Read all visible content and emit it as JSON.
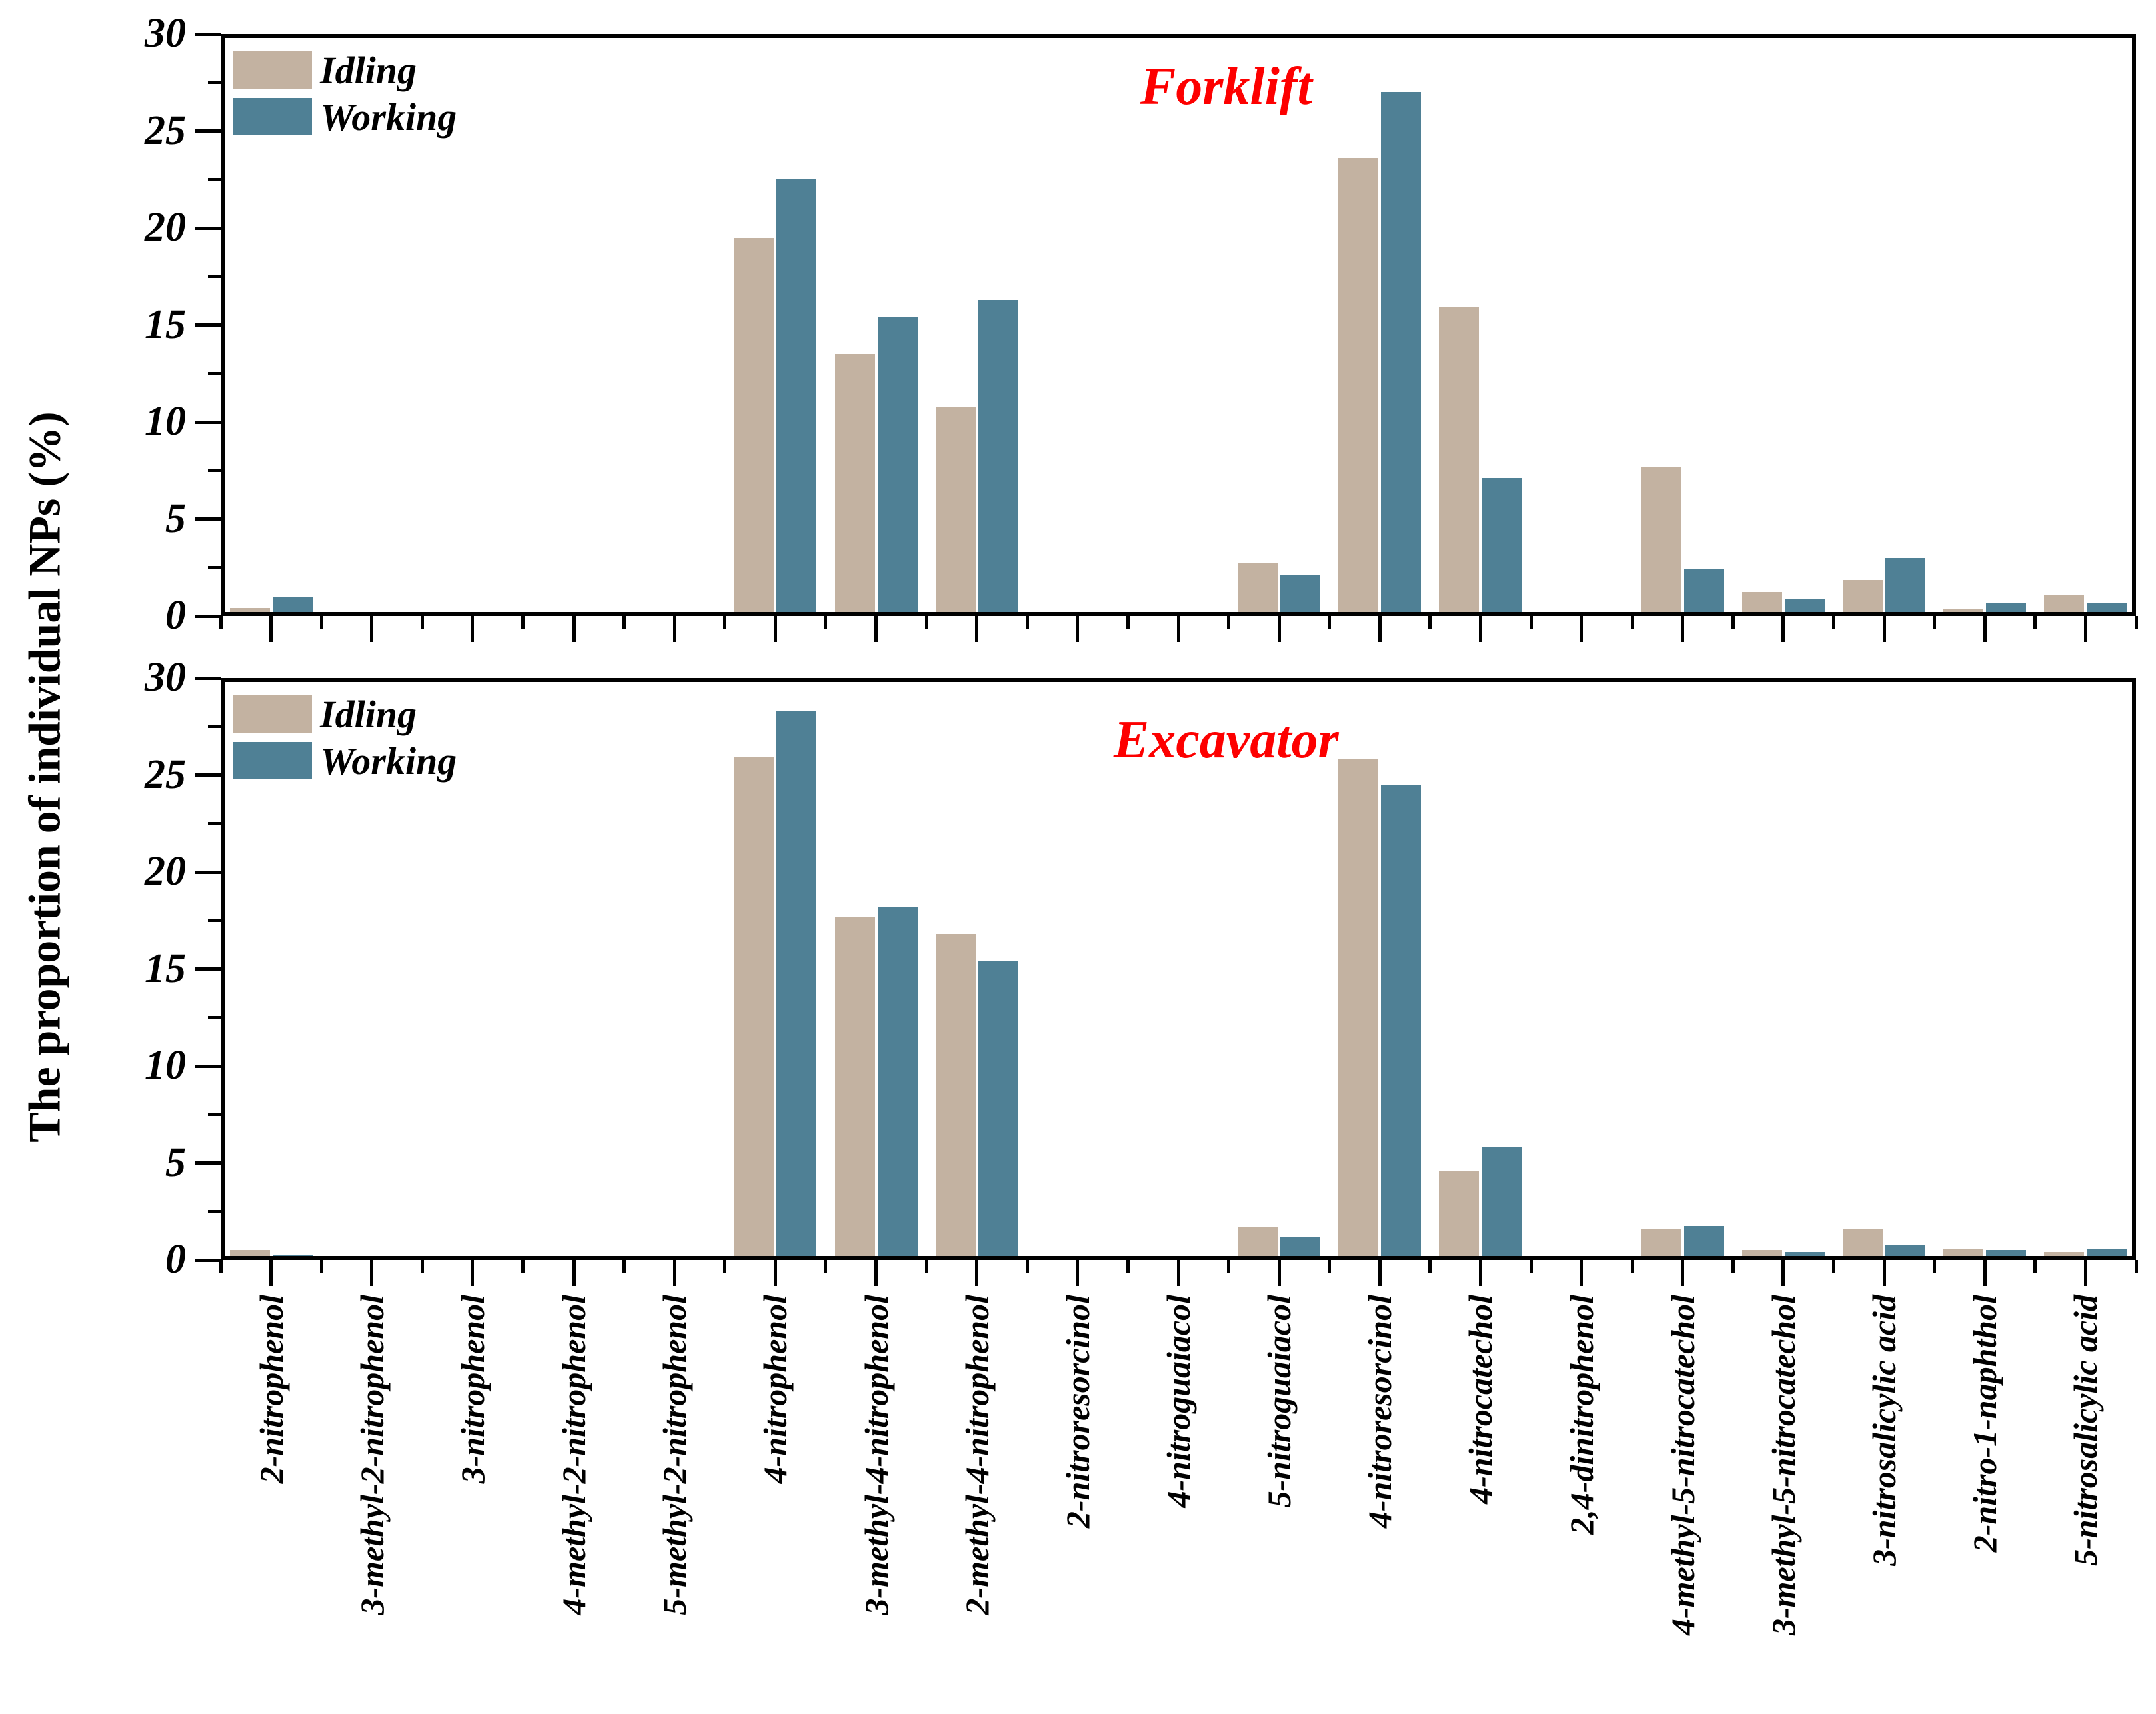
{
  "figure": {
    "y_axis_title": "The proportion of individual NPs (%)",
    "colors": {
      "idling_bar": "#c3b2a1",
      "working_bar": "#4f8095",
      "panel_title": "#fd0000",
      "axis": "#000000",
      "background": "#ffffff"
    },
    "legend": {
      "idling": "Idling",
      "working": "Working"
    }
  },
  "chart_data": [
    {
      "type": "bar",
      "title": "Forklift",
      "ylabel": "The proportion of individual NPs (%)",
      "ylim": [
        0,
        30
      ],
      "yticks": [
        0,
        5,
        10,
        15,
        20,
        25,
        30
      ],
      "minor_tick_step": 2.5,
      "grid": false,
      "legend_position": "top-left",
      "legend": [
        "Idling",
        "Working"
      ],
      "categories": [
        "2-nitrophenol",
        "3-methyl-2-nitrophenol",
        "3-nitrophenol",
        "4-methyl-2-nitrophenol",
        "5-methyl-2-nitrophenol",
        "4-nitrophenol",
        "3-methyl-4-nitrophenol",
        "2-methyl-4-nitrophenol",
        "2-nitroresorcinol",
        "4-nitroguaiacol",
        "5-nitroguaiacol",
        "4-nitroresorcinol",
        "4-nitrocatechol",
        "2,4-dinitrophenol",
        "4-methyl-5-nitrocatechol",
        "3-methyl-5-nitrocatechol",
        "3-nitrosalicylic acid",
        "2-nitro-1-naphthol",
        "5-nitrosalicylic acid"
      ],
      "series": [
        {
          "name": "Idling",
          "values": [
            0.4,
            0,
            0.05,
            0,
            0,
            19.5,
            13.5,
            10.8,
            0,
            0,
            2.7,
            23.6,
            15.9,
            0.1,
            7.7,
            1.25,
            1.85,
            0.35,
            1.1
          ]
        },
        {
          "name": "Working",
          "values": [
            1.0,
            0,
            0.1,
            0,
            0,
            22.5,
            15.4,
            16.3,
            0,
            0.05,
            2.1,
            27.0,
            7.1,
            0.1,
            2.4,
            0.85,
            3.0,
            0.7,
            0.65
          ]
        }
      ]
    },
    {
      "type": "bar",
      "title": "Excavator",
      "ylabel": "The proportion of individual NPs (%)",
      "ylim": [
        0,
        30
      ],
      "yticks": [
        0,
        5,
        10,
        15,
        20,
        25,
        30
      ],
      "minor_tick_step": 2.5,
      "grid": false,
      "legend_position": "top-left",
      "legend": [
        "Idling",
        "Working"
      ],
      "categories": [
        "2-nitrophenol",
        "3-methyl-2-nitrophenol",
        "3-nitrophenol",
        "4-methyl-2-nitrophenol",
        "5-methyl-2-nitrophenol",
        "4-nitrophenol",
        "3-methyl-4-nitrophenol",
        "2-methyl-4-nitrophenol",
        "2-nitroresorcinol",
        "4-nitroguaiacol",
        "5-nitroguaiacol",
        "4-nitroresorcinol",
        "4-nitrocatechol",
        "2,4-dinitrophenol",
        "4-methyl-5-nitrocatechol",
        "3-methyl-5-nitrocatechol",
        "3-nitrosalicylic acid",
        "2-nitro-1-naphthol",
        "5-nitrosalicylic acid"
      ],
      "series": [
        {
          "name": "Idling",
          "values": [
            0.5,
            0,
            0,
            0,
            0,
            25.9,
            17.7,
            16.8,
            0,
            0,
            1.7,
            25.8,
            4.6,
            0.05,
            1.6,
            0.5,
            1.6,
            0.6,
            0.4
          ]
        },
        {
          "name": "Working",
          "values": [
            0.25,
            0,
            0,
            0,
            0,
            28.3,
            18.2,
            15.4,
            0,
            0,
            1.2,
            24.5,
            5.8,
            0.05,
            1.75,
            0.4,
            0.8,
            0.5,
            0.55
          ]
        }
      ]
    }
  ]
}
